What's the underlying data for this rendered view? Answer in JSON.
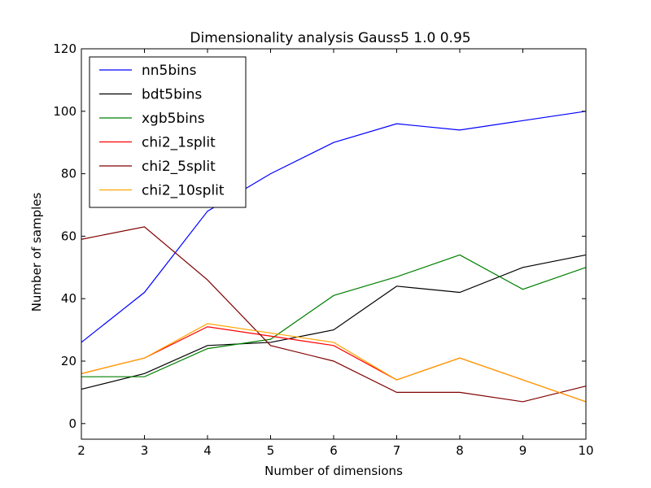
{
  "chart_data": {
    "type": "line",
    "title": "Dimensionality analysis Gauss5 1.0 0.95",
    "xlabel": "Number of dimensions",
    "ylabel": "Number of samples",
    "xlim": [
      2,
      10
    ],
    "ylim": [
      -5,
      120
    ],
    "x_ticks": [
      2,
      3,
      4,
      5,
      6,
      7,
      8,
      9,
      10
    ],
    "y_ticks": [
      0,
      20,
      40,
      60,
      80,
      100,
      120
    ],
    "grid": false,
    "legend_position": "top-left",
    "x": [
      2,
      3,
      4,
      5,
      6,
      7,
      8,
      9,
      10
    ],
    "series": [
      {
        "name": "nn5bins",
        "color": "#0000ff",
        "values": [
          26,
          42,
          68,
          80,
          90,
          96,
          94,
          97,
          100
        ]
      },
      {
        "name": "bdt5bins",
        "color": "#000000",
        "values": [
          11,
          16,
          25,
          26,
          30,
          44,
          42,
          50,
          54
        ]
      },
      {
        "name": "xgb5bins",
        "color": "#008000",
        "values": [
          15,
          15,
          24,
          27,
          41,
          47,
          54,
          43,
          50
        ]
      },
      {
        "name": "chi2_1split",
        "color": "#ff0000",
        "values": [
          16,
          21,
          31,
          28,
          25,
          14,
          21,
          14,
          7
        ]
      },
      {
        "name": "chi2_5split",
        "color": "#800000",
        "values": [
          59,
          63,
          46,
          25,
          20,
          10,
          10,
          7,
          12
        ]
      },
      {
        "name": "chi2_10split",
        "color": "#ffa500",
        "values": [
          16,
          21,
          32,
          29,
          26,
          14,
          21,
          14,
          7
        ]
      }
    ]
  }
}
